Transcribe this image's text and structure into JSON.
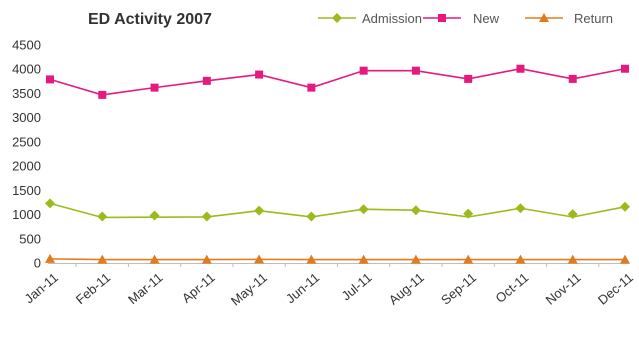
{
  "chart_data": {
    "type": "line",
    "title": "ED Activity 2007",
    "xlabel": "",
    "ylabel": "",
    "ylim": [
      0,
      4500
    ],
    "yticks": [
      0,
      500,
      1000,
      1500,
      2000,
      2500,
      3000,
      3500,
      4000,
      4500
    ],
    "grid": false,
    "legend_position": "top-right",
    "categories": [
      "Jan-11",
      "Feb-11",
      "Mar-11",
      "Apr-11",
      "May-11",
      "Jun-11",
      "Jul-11",
      "Aug-11",
      "Sep-11",
      "Oct-11",
      "Nov-11",
      "Dec-11"
    ],
    "series": [
      {
        "name": "Admission",
        "color": "#9bbb1c",
        "marker": "diamond",
        "values": [
          1230,
          960,
          980,
          960,
          1080,
          960,
          1110,
          1090,
          1020,
          1130,
          1010,
          1160
        ],
        "line_values": [
          1230,
          940,
          945,
          950,
          1080,
          950,
          1110,
          1090,
          950,
          1130,
          950,
          1160
        ]
      },
      {
        "name": "New",
        "color": "#e6197f",
        "marker": "square",
        "values": [
          3790,
          3470,
          3620,
          3760,
          3890,
          3620,
          3970,
          3970,
          3800,
          4010,
          3800,
          4010
        ]
      },
      {
        "name": "Return",
        "color": "#e07b1f",
        "marker": "triangle",
        "values": [
          85,
          70,
          70,
          70,
          75,
          70,
          70,
          70,
          70,
          70,
          70,
          70
        ]
      }
    ]
  }
}
